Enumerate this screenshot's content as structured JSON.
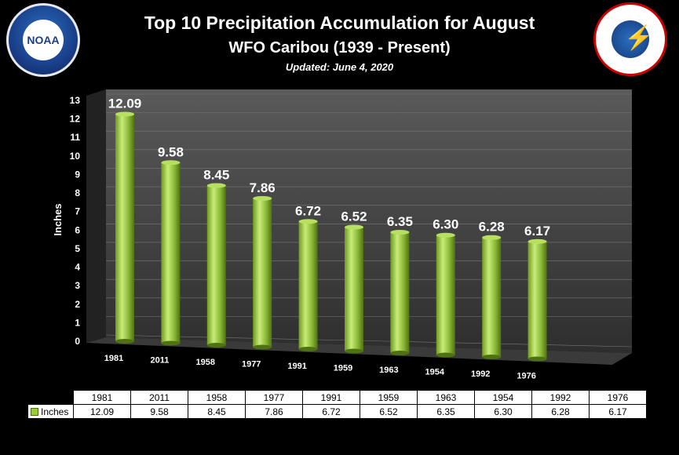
{
  "header": {
    "title": "Top 10 Precipitation Accumulation for August",
    "subtitle": "WFO Caribou (1939 - Present)",
    "updated": "Updated:  June 4, 2020"
  },
  "logos": {
    "left": "NOAA",
    "right": "NATIONAL WEATHER SERVICE"
  },
  "chart_data": {
    "type": "bar",
    "categories": [
      "1981",
      "2011",
      "1958",
      "1977",
      "1991",
      "1959",
      "1963",
      "1954",
      "1992",
      "1976"
    ],
    "series": [
      {
        "name": "Inches",
        "values": [
          12.09,
          9.58,
          8.45,
          7.86,
          6.72,
          6.52,
          6.35,
          6.3,
          6.28,
          6.17
        ],
        "labels": [
          "12.09",
          "9.58",
          "8.45",
          "7.86",
          "6.72",
          "6.52",
          "6.35",
          "6.30",
          "6.28",
          "6.17"
        ]
      }
    ],
    "ylabel": "Inches",
    "ylim": [
      0,
      13
    ],
    "yticks": [
      "0",
      "1",
      "2",
      "3",
      "4",
      "5",
      "6",
      "7",
      "8",
      "9",
      "10",
      "11",
      "12",
      "13"
    ],
    "grid": true,
    "bar_color": "#9acd32"
  }
}
